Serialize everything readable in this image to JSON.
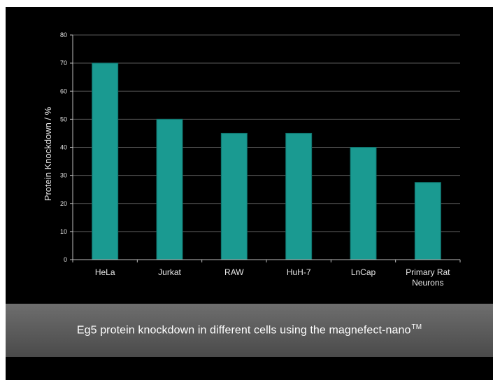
{
  "caption": {
    "text": "Eg5 protein knockdown in different cells using the magnefect-nano",
    "trademark": "TM"
  },
  "chart_data": {
    "type": "bar",
    "title": "",
    "xlabel": "",
    "ylabel": "Protein Knockdown / %",
    "ylim": [
      0,
      80
    ],
    "yticks": [
      0,
      10,
      20,
      30,
      40,
      50,
      60,
      70,
      80
    ],
    "grid": true,
    "categories": [
      [
        "HeLa"
      ],
      [
        "Jurkat"
      ],
      [
        "RAW"
      ],
      [
        "HuH-7"
      ],
      [
        "LnCap"
      ],
      [
        "Primary Rat",
        "Neurons"
      ]
    ],
    "values": [
      70,
      50,
      45,
      45,
      40,
      27.5
    ],
    "colors": {
      "bar": "#1a9a91",
      "bar_edge": "#0e6f69",
      "grid": "#5a5a5a",
      "axis": "#bdbdbd",
      "background": "#000000"
    }
  }
}
